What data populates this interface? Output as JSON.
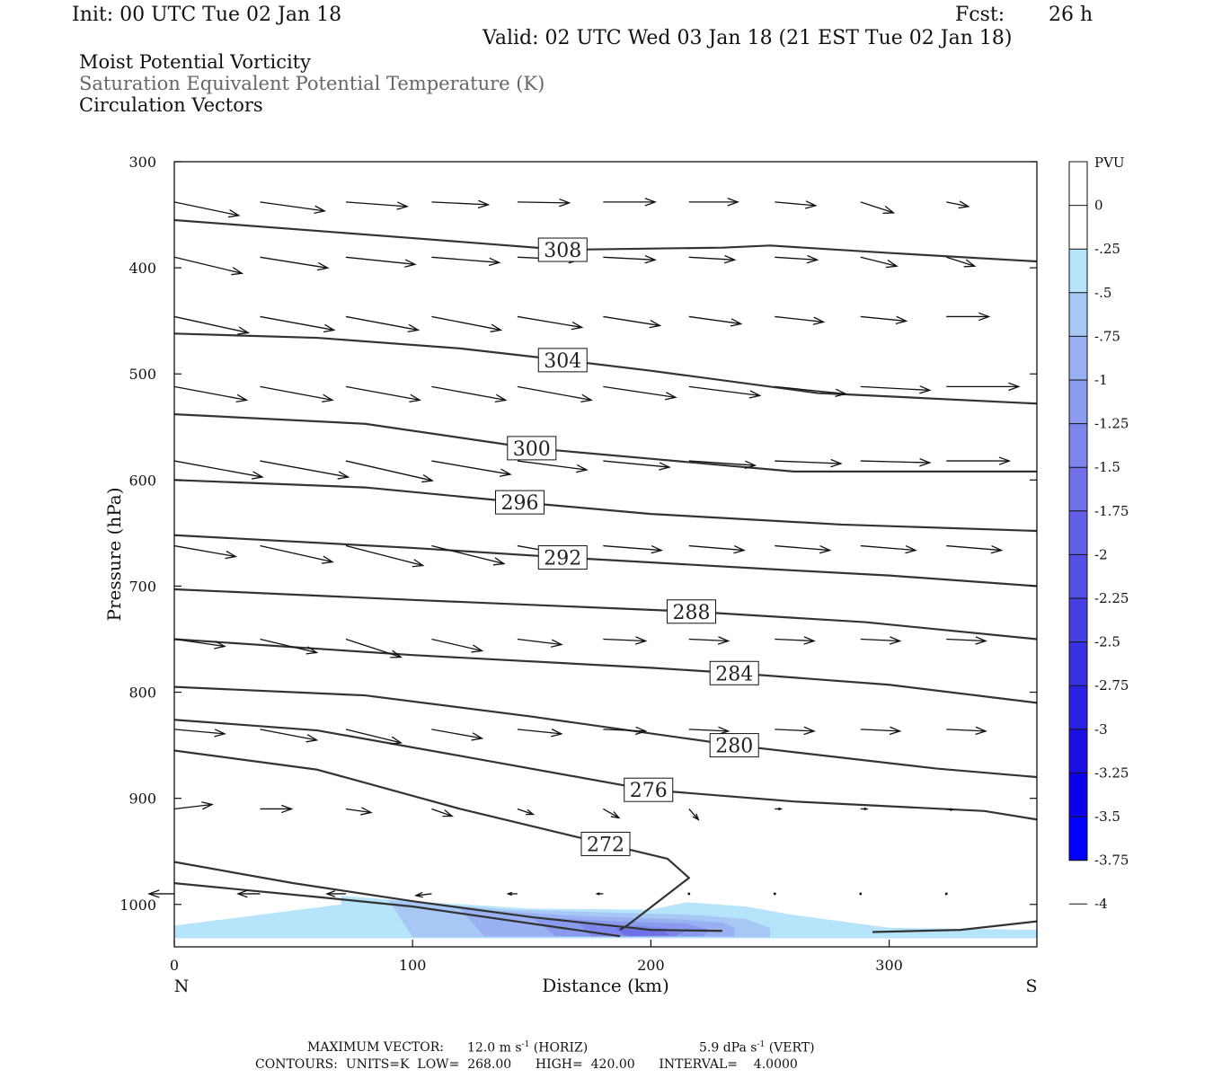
{
  "header": {
    "init": "Init: 00 UTC Tue 02 Jan 18",
    "fcst_label": "Fcst:",
    "fcst_value": "26 h",
    "valid": "Valid: 02 UTC Wed 03 Jan 18 (21 EST Tue 02 Jan 18)"
  },
  "titles": {
    "line1": "Moist Potential Vorticity",
    "line2": "Saturation Equivalent Potential Temperature (K)",
    "line3": "Circulation Vectors"
  },
  "colors": {
    "title_gray": "#666666",
    "contour": "#333333",
    "pv_shades": [
      "#b6e4fb",
      "#a7c8f5",
      "#99b1f2",
      "#8a9bee",
      "#7d86ea",
      "#6f70e8",
      "#6260e6",
      "#5450e4",
      "#4640e3",
      "#3830e3",
      "#2a20e3",
      "#1c10e6",
      "#0d00ea",
      "#0000ff"
    ]
  },
  "footer": {
    "max_vector_label": "MAXIMUM VECTOR:",
    "horiz_value": "12.0 m s",
    "horiz_exp": "-1",
    "horiz_tag": "(HORIZ)",
    "vert_value": "5.9 dPa s",
    "vert_exp": "-1",
    "vert_tag": "(VERT)",
    "contours_line": "CONTOURS:  UNITS=K  LOW=  268.00      HIGH=  420.00      INTERVAL=    4.0000"
  },
  "chart_data": {
    "type": "cross-section",
    "xlabel": "Distance (km)",
    "ylabel": "Pressure (hPa)",
    "xlim": [
      0,
      362
    ],
    "ylim": [
      1040,
      300
    ],
    "x_ticks": [
      0,
      100,
      200,
      300
    ],
    "y_ticks": [
      300,
      400,
      500,
      600,
      700,
      800,
      900,
      1000
    ],
    "x_end_labels": [
      "N",
      "S"
    ],
    "colorbar": {
      "unit": "PVU",
      "labels": [
        "0",
        "-.25",
        "-.5",
        "-.75",
        "-1",
        "-1.25",
        "-1.5",
        "-1.75",
        "-2",
        "-2.25",
        "-2.5",
        "-2.75",
        "-3",
        "-3.25",
        "-3.5",
        "-3.75",
        "-4"
      ]
    },
    "theta_es_contours": [
      {
        "label": "308",
        "label_x": 163,
        "points": [
          [
            0,
            355
          ],
          [
            100,
            372
          ],
          [
            163,
            383
          ],
          [
            230,
            381
          ],
          [
            250,
            379
          ],
          [
            300,
            386
          ],
          [
            362,
            394
          ]
        ]
      },
      {
        "label": "304",
        "label_x": 163,
        "points": [
          [
            0,
            462
          ],
          [
            60,
            466
          ],
          [
            120,
            476
          ],
          [
            163,
            487
          ],
          [
            200,
            497
          ],
          [
            270,
            518
          ],
          [
            362,
            528
          ]
        ]
      },
      {
        "label": "300",
        "label_x": 150,
        "points": [
          [
            0,
            538
          ],
          [
            80,
            547
          ],
          [
            150,
            570
          ],
          [
            200,
            580
          ],
          [
            260,
            592
          ],
          [
            362,
            592
          ]
        ]
      },
      {
        "label": "296",
        "label_x": 145,
        "points": [
          [
            0,
            600
          ],
          [
            80,
            607
          ],
          [
            145,
            621
          ],
          [
            200,
            632
          ],
          [
            280,
            642
          ],
          [
            362,
            648
          ]
        ]
      },
      {
        "label": "292",
        "label_x": 163,
        "points": [
          [
            0,
            652
          ],
          [
            100,
            664
          ],
          [
            163,
            673
          ],
          [
            250,
            684
          ],
          [
            300,
            690
          ],
          [
            362,
            700
          ]
        ]
      },
      {
        "label": "288",
        "label_x": 217,
        "points": [
          [
            0,
            703
          ],
          [
            100,
            713
          ],
          [
            217,
            724
          ],
          [
            290,
            734
          ],
          [
            362,
            750
          ]
        ]
      },
      {
        "label": "284",
        "label_x": 235,
        "points": [
          [
            0,
            750
          ],
          [
            100,
            765
          ],
          [
            200,
            777
          ],
          [
            235,
            782
          ],
          [
            300,
            793
          ],
          [
            362,
            810
          ]
        ]
      },
      {
        "label": "280",
        "label_x": 235,
        "points": [
          [
            0,
            795
          ],
          [
            80,
            803
          ],
          [
            150,
            823
          ],
          [
            235,
            850
          ],
          [
            320,
            872
          ],
          [
            362,
            880
          ]
        ]
      },
      {
        "label": "276",
        "label_x": 199,
        "points": [
          [
            0,
            826
          ],
          [
            60,
            836
          ],
          [
            120,
            860
          ],
          [
            199,
            892
          ],
          [
            260,
            903
          ],
          [
            340,
            912
          ],
          [
            362,
            920
          ]
        ]
      },
      {
        "label": "272",
        "label_x": 181,
        "points": [
          [
            0,
            855
          ],
          [
            60,
            873
          ],
          [
            120,
            910
          ],
          [
            181,
            943
          ],
          [
            207,
            957
          ],
          [
            216,
            975
          ],
          [
            190,
            1020
          ],
          [
            187,
            1024
          ]
        ]
      },
      {
        "label": "",
        "label_x": -1,
        "points": [
          [
            0,
            960
          ],
          [
            50,
            980
          ],
          [
            100,
            997
          ],
          [
            150,
            1012
          ],
          [
            200,
            1024
          ],
          [
            230,
            1025
          ]
        ]
      },
      {
        "label": "",
        "label_x": -1,
        "points": [
          [
            0,
            980
          ],
          [
            60,
            993
          ],
          [
            100,
            1002
          ],
          [
            187,
            1030
          ]
        ]
      },
      {
        "label": "",
        "label_x": -1,
        "points": [
          [
            293,
            1026
          ],
          [
            330,
            1024
          ],
          [
            362,
            1016
          ]
        ]
      }
    ],
    "pv_shading": [
      {
        "pvu_band": "-.25 to 0",
        "points": [
          [
            70,
            992
          ],
          [
            100,
            997
          ],
          [
            150,
            1004
          ],
          [
            200,
            1005
          ],
          [
            215,
            998
          ],
          [
            240,
            1002
          ],
          [
            260,
            1010
          ],
          [
            300,
            1022
          ],
          [
            362,
            1024
          ],
          [
            362,
            1032
          ],
          [
            0,
            1032
          ],
          [
            0,
            1020
          ],
          [
            70,
            1000
          ]
        ]
      },
      {
        "pvu_band": "-.5 to -.25",
        "points": [
          [
            90,
            996
          ],
          [
            140,
            1005
          ],
          [
            190,
            1008
          ],
          [
            220,
            1010
          ],
          [
            240,
            1014
          ],
          [
            250,
            1022
          ],
          [
            250,
            1031
          ],
          [
            100,
            1031
          ]
        ]
      },
      {
        "pvu_band": "-.75 to -.5",
        "points": [
          [
            120,
            1004
          ],
          [
            170,
            1011
          ],
          [
            210,
            1014
          ],
          [
            230,
            1017
          ],
          [
            235,
            1022
          ],
          [
            235,
            1030
          ],
          [
            130,
            1030
          ]
        ]
      },
      {
        "pvu_band": "-1 to -.75",
        "points": [
          [
            150,
            1012
          ],
          [
            185,
            1016
          ],
          [
            215,
            1018
          ],
          [
            225,
            1024
          ],
          [
            222,
            1030
          ],
          [
            160,
            1030
          ]
        ]
      },
      {
        "pvu_band": "-1.25 to -1",
        "points": [
          [
            170,
            1018
          ],
          [
            200,
            1021
          ],
          [
            215,
            1025
          ],
          [
            210,
            1030
          ],
          [
            175,
            1030
          ]
        ]
      },
      {
        "pvu_band": "-1.75 to -1.25",
        "points": [
          [
            185,
            1023
          ],
          [
            205,
            1025
          ],
          [
            208,
            1029
          ],
          [
            190,
            1030
          ]
        ]
      }
    ],
    "max_vector": {
      "horiz": "12.0 m s-1",
      "vert": "5.9 dPa s-1"
    },
    "contour_info": {
      "units": "K",
      "low": 268.0,
      "high": 420.0,
      "interval": 4.0
    },
    "vector_field": {
      "x": [
        0,
        36,
        72,
        108,
        144,
        180,
        216,
        252,
        288,
        324
      ],
      "rows": [
        {
          "p": 338,
          "u": [
            2.05,
            2.05,
            1.95,
            1.8,
            1.65,
            1.65,
            1.55,
            1.3,
            1.05,
            0.7
          ],
          "v": [
            -15,
            -10,
            -5,
            -3,
            -1,
            0,
            0,
            -4,
            -12,
            -5
          ]
        },
        {
          "p": 390,
          "u": [
            2.15,
            2.15,
            2.2,
            2.15,
            1.95,
            1.65,
            1.45,
            1.35,
            1.15,
            0.9
          ],
          "v": [
            -18,
            -12,
            -8,
            -6,
            -3,
            -3,
            -3,
            -3,
            -10,
            -10
          ]
        },
        {
          "p": 446,
          "u": [
            2.35,
            2.35,
            2.3,
            2.2,
            2.05,
            1.8,
            1.65,
            1.55,
            1.45,
            1.35
          ],
          "v": [
            -18,
            -15,
            -15,
            -15,
            -12,
            -10,
            -8,
            -6,
            -5,
            0
          ]
        },
        {
          "p": 512,
          "u": [
            2.3,
            2.3,
            2.35,
            2.35,
            2.35,
            2.3,
            2.25,
            2.25,
            2.2,
            2.3
          ],
          "v": [
            -15,
            -15,
            -15,
            -15,
            -15,
            -12,
            -10,
            -8,
            -4,
            0
          ]
        },
        {
          "p": 582,
          "u": [
            2.8,
            2.8,
            2.75,
            2.5,
            2.2,
            2.1,
            2.1,
            2.1,
            2.2,
            2.0
          ],
          "v": [
            -18,
            -18,
            -22,
            -15,
            -10,
            -7,
            -5,
            -3,
            -2,
            0
          ]
        },
        {
          "p": 662,
          "u": [
            1.95,
            2.3,
            2.45,
            2.3,
            1.95,
            1.85,
            1.75,
            1.75,
            1.75,
            1.75
          ],
          "v": [
            -12,
            -18,
            -22,
            -20,
            -12,
            -5,
            -5,
            -5,
            -5,
            -5
          ]
        },
        {
          "p": 750,
          "u": [
            1.6,
            1.8,
            1.75,
            1.6,
            1.4,
            1.35,
            1.25,
            1.25,
            1.25,
            1.25
          ],
          "v": [
            -8,
            -15,
            -20,
            -13,
            -6,
            -2,
            -2,
            -2,
            -2,
            -2
          ]
        },
        {
          "p": 835,
          "u": [
            1.6,
            1.8,
            1.75,
            1.6,
            1.4,
            1.35,
            1.25,
            1.25,
            1.25,
            1.25
          ],
          "v": [
            -5,
            -12,
            -15,
            -10,
            -5,
            -2,
            -2,
            -2,
            -2,
            -2
          ]
        },
        {
          "p": 910,
          "u": [
            1.2,
            1.0,
            0.8,
            0.65,
            0.5,
            0.5,
            0.3,
            0.2,
            0.2,
            0.2
          ],
          "v": [
            5,
            0,
            -4,
            -8,
            -6,
            -10,
            -12,
            0,
            0,
            -1
          ]
        },
        {
          "p": 990,
          "u": [
            -0.8,
            -0.7,
            -0.6,
            -0.5,
            -0.3,
            -0.2,
            0,
            0,
            0,
            0
          ],
          "v": [
            0,
            0,
            0,
            -2,
            0,
            0,
            0,
            0,
            0,
            0
          ]
        }
      ]
    }
  }
}
